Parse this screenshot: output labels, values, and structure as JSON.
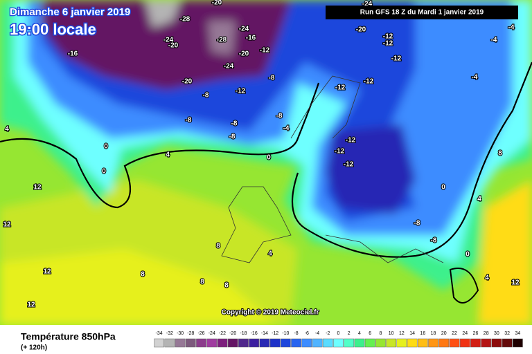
{
  "header": {
    "date": "Dimanche 6 janvier 2019",
    "time": "19:00 locale",
    "run": "Run GFS 18 Z du Mardi 1 janvier 2019"
  },
  "footer": {
    "title": "Température 850hPa",
    "subtitle": "(+ 120h)",
    "copyright": "Copyright © 2019 Meteociel.fr"
  },
  "scale": {
    "labels": [
      -34,
      -32,
      -30,
      -28,
      -26,
      -24,
      -22,
      -20,
      -18,
      -16,
      -14,
      -12,
      -10,
      -8,
      -6,
      -4,
      -2,
      0,
      2,
      4,
      6,
      8,
      10,
      12,
      14,
      16,
      18,
      20,
      22,
      24,
      26,
      28,
      30,
      32,
      34
    ],
    "colors": [
      "#d2d2d2",
      "#b4b4b4",
      "#967896",
      "#7d5a7d",
      "#8c3c8c",
      "#a03ca0",
      "#7d1e7d",
      "#641464",
      "#50288c",
      "#3c1ea0",
      "#2828b4",
      "#1e32c8",
      "#1e46dc",
      "#2864f0",
      "#3c8cff",
      "#50b4ff",
      "#5adcff",
      "#6effff",
      "#50ffc8",
      "#3cf08c",
      "#64f050",
      "#96e632",
      "#c8e628",
      "#e6f01e",
      "#ffdc14",
      "#ffbe14",
      "#ff9614",
      "#ff7814",
      "#ff5014",
      "#f03214",
      "#d21e14",
      "#b41414",
      "#8c0a0a",
      "#640a0a",
      "#1e0000"
    ]
  },
  "map_labels": [
    "-16",
    "-20",
    "-24",
    "-20",
    "-28",
    "-24",
    "-16",
    "-20",
    "-12",
    "-24",
    "-12",
    "-8",
    "-8",
    "-8",
    "-8",
    "-8",
    "-4",
    "-8",
    "0",
    "0",
    "0",
    "4",
    "4",
    "12",
    "12",
    "12",
    "12",
    "8",
    "8",
    "8",
    "8",
    "4",
    "-12",
    "-12",
    "-12",
    "-12",
    "-12",
    "-20",
    "-12",
    "-4",
    "-4",
    "-8",
    "-8",
    "0",
    "4",
    "0",
    "12",
    "4",
    "8",
    "-24",
    "-28",
    "-20",
    "-12",
    "-4",
    "-12"
  ]
}
